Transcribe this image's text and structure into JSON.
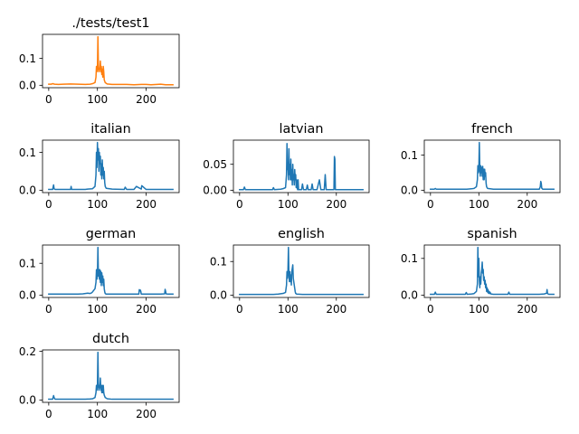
{
  "chart_data": [
    {
      "type": "line",
      "title": "./tests/test1",
      "color": "#ff7f0e",
      "xlim": [
        -12.75,
        267.75
      ],
      "ylim": [
        -0.009,
        0.189
      ],
      "xticks": [
        0,
        100,
        200
      ],
      "xtick_labels": [
        "0",
        "100",
        "200"
      ],
      "yticks": [
        0.0,
        0.1
      ],
      "ytick_labels": [
        "0.0",
        "0.1"
      ],
      "x": [
        0,
        5,
        8,
        12,
        20,
        30,
        45,
        60,
        75,
        85,
        90,
        95,
        97,
        98,
        99,
        100,
        101,
        102,
        103,
        104,
        105,
        106,
        107,
        108,
        109,
        110,
        111,
        112,
        113,
        114,
        116,
        120,
        130,
        150,
        160,
        175,
        190,
        200,
        210,
        230,
        240,
        255
      ],
      "y": [
        0.004,
        0.004,
        0.006,
        0.004,
        0.003,
        0.004,
        0.005,
        0.004,
        0.003,
        0.004,
        0.006,
        0.01,
        0.03,
        0.07,
        0.05,
        0.06,
        0.18,
        0.07,
        0.05,
        0.06,
        0.06,
        0.09,
        0.05,
        0.07,
        0.04,
        0.06,
        0.03,
        0.07,
        0.05,
        0.02,
        0.01,
        0.005,
        0.003,
        0.003,
        0.003,
        0.002,
        0.003,
        0.003,
        0.002,
        0.004,
        0.002,
        0.002
      ]
    },
    {
      "type": "line",
      "title": "italian",
      "color": "#1f77b4",
      "xlim": [
        -12.75,
        267.75
      ],
      "ylim": [
        -0.0063,
        0.1323
      ],
      "xticks": [
        0,
        100,
        200
      ],
      "xtick_labels": [
        "0",
        "100",
        "200"
      ],
      "yticks": [
        0.0,
        0.1
      ],
      "ytick_labels": [
        "0.0",
        "0.1"
      ],
      "x": [
        0,
        8,
        10,
        11,
        13,
        20,
        30,
        45,
        46,
        47,
        60,
        75,
        80,
        90,
        95,
        97,
        98,
        99,
        100,
        101,
        102,
        103,
        104,
        105,
        106,
        107,
        108,
        109,
        110,
        111,
        112,
        113,
        114,
        115,
        116,
        118,
        130,
        155,
        157,
        160,
        175,
        180,
        190,
        191,
        200,
        220,
        255
      ],
      "y": [
        0.002,
        0.002,
        0.014,
        0.004,
        0.002,
        0.002,
        0.002,
        0.002,
        0.01,
        0.002,
        0.002,
        0.002,
        0.003,
        0.004,
        0.01,
        0.04,
        0.1,
        0.06,
        0.126,
        0.08,
        0.11,
        0.05,
        0.1,
        0.07,
        0.09,
        0.04,
        0.07,
        0.03,
        0.08,
        0.04,
        0.06,
        0.03,
        0.05,
        0.02,
        0.01,
        0.005,
        0.003,
        0.002,
        0.008,
        0.002,
        0.002,
        0.01,
        0.003,
        0.012,
        0.002,
        0.002,
        0.002
      ]
    },
    {
      "type": "line",
      "title": "latvian",
      "color": "#1f77b4",
      "xlim": [
        -12.75,
        267.75
      ],
      "ylim": [
        -0.0046,
        0.0966
      ],
      "xticks": [
        0,
        100,
        200
      ],
      "xtick_labels": [
        "0",
        "100",
        "200"
      ],
      "yticks": [
        0.0,
        0.05
      ],
      "ytick_labels": [
        "0.00",
        "0.05"
      ],
      "x": [
        0,
        8,
        10,
        12,
        20,
        30,
        45,
        60,
        68,
        70,
        72,
        85,
        90,
        95,
        97,
        98,
        99,
        100,
        101,
        102,
        103,
        104,
        105,
        106,
        107,
        108,
        109,
        110,
        111,
        112,
        113,
        114,
        115,
        116,
        117,
        118,
        119,
        120,
        121,
        122,
        128,
        130,
        132,
        138,
        140,
        142,
        148,
        150,
        152,
        160,
        165,
        168,
        170,
        175,
        177,
        179,
        180,
        190,
        195,
        196,
        197,
        198,
        200,
        210,
        230,
        255
      ],
      "y": [
        0.001,
        0.001,
        0.006,
        0.001,
        0.001,
        0.001,
        0.001,
        0.001,
        0.001,
        0.005,
        0.001,
        0.002,
        0.003,
        0.005,
        0.03,
        0.09,
        0.04,
        0.05,
        0.02,
        0.08,
        0.03,
        0.05,
        0.02,
        0.06,
        0.02,
        0.04,
        0.01,
        0.05,
        0.02,
        0.03,
        0.01,
        0.04,
        0.02,
        0.03,
        0.005,
        0.02,
        0.005,
        0.001,
        0.02,
        0.001,
        0.001,
        0.012,
        0.001,
        0.001,
        0.01,
        0.001,
        0.001,
        0.012,
        0.001,
        0.001,
        0.02,
        0.001,
        0.001,
        0.001,
        0.03,
        0.001,
        0.001,
        0.001,
        0.001,
        0.065,
        0.06,
        0.001,
        0.001,
        0.001,
        0.001,
        0.001
      ]
    },
    {
      "type": "line",
      "title": "french",
      "color": "#1f77b4",
      "xlim": [
        -12.75,
        267.75
      ],
      "ylim": [
        -0.0068,
        0.1428
      ],
      "xticks": [
        0,
        100,
        200
      ],
      "xtick_labels": [
        "0",
        "100",
        "200"
      ],
      "yticks": [
        0.0,
        0.1
      ],
      "ytick_labels": [
        "0.0",
        "0.1"
      ],
      "x": [
        0,
        8,
        10,
        12,
        20,
        30,
        45,
        60,
        75,
        85,
        90,
        95,
        97,
        98,
        99,
        100,
        101,
        102,
        103,
        104,
        105,
        106,
        107,
        108,
        109,
        110,
        111,
        112,
        113,
        114,
        115,
        116,
        118,
        130,
        150,
        200,
        225,
        227,
        228,
        229,
        230,
        232,
        240,
        255
      ],
      "y": [
        0.003,
        0.003,
        0.005,
        0.003,
        0.003,
        0.003,
        0.003,
        0.003,
        0.003,
        0.004,
        0.005,
        0.01,
        0.03,
        0.07,
        0.05,
        0.06,
        0.136,
        0.06,
        0.04,
        0.07,
        0.05,
        0.065,
        0.04,
        0.068,
        0.03,
        0.06,
        0.03,
        0.06,
        0.04,
        0.05,
        0.02,
        0.01,
        0.005,
        0.003,
        0.003,
        0.003,
        0.003,
        0.01,
        0.025,
        0.02,
        0.006,
        0.003,
        0.003,
        0.003
      ]
    },
    {
      "type": "line",
      "title": "german",
      "color": "#1f77b4",
      "xlim": [
        -12.75,
        267.75
      ],
      "ylim": [
        -0.0075,
        0.1575
      ],
      "xticks": [
        0,
        100,
        200
      ],
      "xtick_labels": [
        "0",
        "100",
        "200"
      ],
      "yticks": [
        0.0,
        0.1
      ],
      "ytick_labels": [
        "0.0",
        "0.1"
      ],
      "x": [
        0,
        10,
        20,
        30,
        45,
        60,
        70,
        75,
        80,
        85,
        88,
        90,
        95,
        97,
        98,
        99,
        100,
        101,
        102,
        103,
        104,
        105,
        106,
        107,
        108,
        109,
        110,
        111,
        112,
        113,
        114,
        115,
        116,
        118,
        130,
        150,
        185,
        186,
        187,
        188,
        189,
        190,
        200,
        230,
        238,
        239,
        240,
        241,
        245,
        255
      ],
      "y": [
        0.003,
        0.003,
        0.003,
        0.003,
        0.003,
        0.003,
        0.004,
        0.005,
        0.006,
        0.005,
        0.007,
        0.01,
        0.02,
        0.04,
        0.08,
        0.05,
        0.06,
        0.15,
        0.06,
        0.08,
        0.05,
        0.08,
        0.04,
        0.075,
        0.03,
        0.07,
        0.04,
        0.06,
        0.03,
        0.05,
        0.02,
        0.01,
        0.005,
        0.003,
        0.003,
        0.003,
        0.003,
        0.017,
        0.013,
        0.016,
        0.012,
        0.003,
        0.003,
        0.003,
        0.004,
        0.018,
        0.012,
        0.004,
        0.003,
        0.003
      ]
    },
    {
      "type": "line",
      "title": "english",
      "color": "#1f77b4",
      "xlim": [
        -12.75,
        267.75
      ],
      "ylim": [
        -0.0071,
        0.1491
      ],
      "xticks": [
        0,
        100,
        200
      ],
      "xtick_labels": [
        "0",
        "100",
        "200"
      ],
      "yticks": [
        0.0,
        0.1
      ],
      "ytick_labels": [
        "0.0",
        "0.1"
      ],
      "x": [
        0,
        10,
        20,
        30,
        45,
        60,
        70,
        80,
        85,
        90,
        95,
        97,
        98,
        99,
        100,
        101,
        102,
        103,
        104,
        105,
        106,
        107,
        108,
        109,
        110,
        111,
        112,
        113,
        114,
        115,
        116,
        118,
        130,
        150,
        200,
        255
      ],
      "y": [
        0.002,
        0.002,
        0.002,
        0.002,
        0.002,
        0.002,
        0.002,
        0.003,
        0.004,
        0.005,
        0.008,
        0.03,
        0.07,
        0.05,
        0.075,
        0.142,
        0.06,
        0.04,
        0.07,
        0.04,
        0.06,
        0.03,
        0.07,
        0.08,
        0.09,
        0.05,
        0.04,
        0.03,
        0.02,
        0.01,
        0.005,
        0.003,
        0.002,
        0.002,
        0.002,
        0.002
      ]
    },
    {
      "type": "line",
      "title": "spanish",
      "color": "#1f77b4",
      "xlim": [
        -12.75,
        267.75
      ],
      "ylim": [
        -0.0065,
        0.1365
      ],
      "xticks": [
        0,
        100,
        200
      ],
      "xtick_labels": [
        "0",
        "100",
        "200"
      ],
      "yticks": [
        0.0,
        0.1
      ],
      "ytick_labels": [
        "0.0",
        "0.1"
      ],
      "x": [
        0,
        8,
        10,
        12,
        20,
        30,
        45,
        60,
        72,
        74,
        76,
        85,
        90,
        95,
        97,
        98,
        99,
        100,
        101,
        102,
        103,
        104,
        105,
        106,
        107,
        108,
        109,
        110,
        111,
        112,
        113,
        114,
        115,
        116,
        117,
        118,
        119,
        120,
        121,
        122,
        123,
        125,
        130,
        160,
        162,
        164,
        200,
        225,
        235,
        240,
        241,
        242,
        245,
        255
      ],
      "y": [
        0.002,
        0.002,
        0.008,
        0.002,
        0.002,
        0.002,
        0.002,
        0.002,
        0.002,
        0.007,
        0.002,
        0.003,
        0.004,
        0.01,
        0.03,
        0.13,
        0.05,
        0.1,
        0.04,
        0.02,
        0.05,
        0.03,
        0.06,
        0.07,
        0.09,
        0.06,
        0.07,
        0.04,
        0.05,
        0.03,
        0.04,
        0.02,
        0.03,
        0.01,
        0.02,
        0.008,
        0.015,
        0.005,
        0.01,
        0.004,
        0.008,
        0.003,
        0.002,
        0.002,
        0.008,
        0.002,
        0.002,
        0.002,
        0.003,
        0.005,
        0.015,
        0.004,
        0.002,
        0.002
      ]
    },
    {
      "type": "line",
      "title": "dutch",
      "color": "#1f77b4",
      "xlim": [
        -12.75,
        267.75
      ],
      "ylim": [
        -0.0098,
        0.2058
      ],
      "xticks": [
        0,
        100,
        200
      ],
      "xtick_labels": [
        "0",
        "100",
        "200"
      ],
      "yticks": [
        0.0,
        0.2
      ],
      "ytick_labels": [
        "0.0",
        "0.2"
      ],
      "x": [
        0,
        8,
        10,
        11,
        13,
        20,
        30,
        45,
        60,
        75,
        85,
        90,
        95,
        97,
        98,
        99,
        100,
        101,
        102,
        103,
        104,
        105,
        106,
        107,
        108,
        109,
        110,
        111,
        112,
        113,
        114,
        116,
        120,
        130,
        150,
        200,
        255
      ],
      "y": [
        0.003,
        0.003,
        0.018,
        0.01,
        0.003,
        0.003,
        0.003,
        0.003,
        0.003,
        0.003,
        0.004,
        0.005,
        0.01,
        0.03,
        0.06,
        0.04,
        0.06,
        0.196,
        0.06,
        0.04,
        0.06,
        0.05,
        0.09,
        0.04,
        0.06,
        0.03,
        0.06,
        0.03,
        0.06,
        0.03,
        0.02,
        0.01,
        0.005,
        0.003,
        0.003,
        0.003,
        0.003
      ]
    }
  ]
}
